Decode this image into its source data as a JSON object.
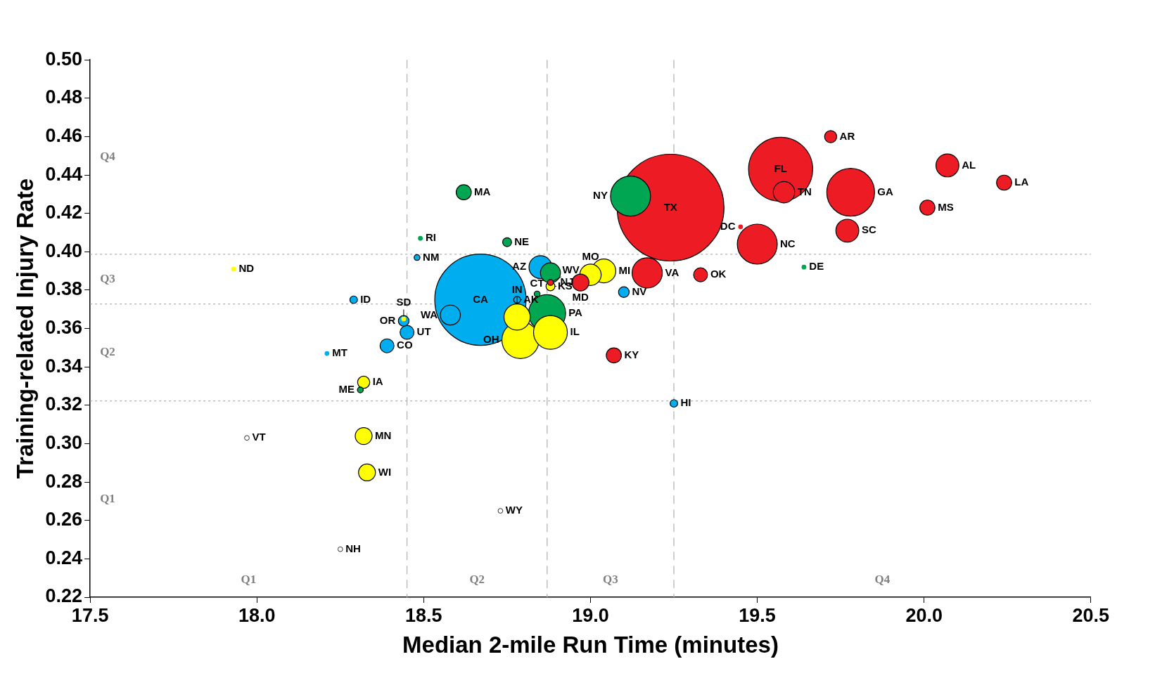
{
  "chart_data": {
    "type": "bubble",
    "xlabel": "Median 2-mile Run Time (minutes)",
    "ylabel": "Training-related Injury Rate",
    "xlim": [
      17.5,
      20.5
    ],
    "xticks": [
      17.5,
      {
        "value": 18,
        "label": "18.0"
      },
      18.5,
      {
        "value": 19,
        "label": "19.0"
      },
      19.5,
      {
        "value": 20,
        "label": "20.0"
      },
      20.5
    ],
    "ylim": [
      0.22,
      0.5
    ],
    "yticks": [
      0.22,
      0.24,
      0.26,
      0.28,
      {
        "value": 0.3,
        "label": "0.30"
      },
      0.32,
      0.34,
      0.36,
      0.38,
      {
        "value": 0.4,
        "label": "0.40"
      },
      0.42,
      0.44,
      0.46,
      0.48,
      {
        "value": 0.5,
        "label": "0.50"
      }
    ],
    "legend": false,
    "series": [
      {
        "x": [
          19.24,
          18.67,
          19.57,
          19.78,
          19.12,
          19.5,
          18.87,
          18.79,
          18.88,
          19.17,
          18.78,
          19.04,
          18.85,
          20.07,
          19.77,
          19.58,
          19.0,
          18.88,
          18.58,
          18.97,
          18.32,
          18.33,
          18.62,
          20.24,
          20.01,
          19.07,
          19.33,
          18.45,
          18.39,
          19.72,
          18.32,
          19.1,
          18.44,
          18.75,
          18.88,
          19.25,
          18.29,
          18.48,
          18.88,
          18.31,
          18.84,
          18.49,
          19.64,
          18.21,
          18.25,
          18.78,
          17.93,
          17.97,
          18.73,
          18.44,
          19.45
        ],
        "values": [
          0.423,
          0.375,
          0.443,
          0.431,
          0.429,
          0.404,
          0.368,
          0.354,
          0.358,
          0.389,
          0.366,
          0.39,
          0.392,
          0.445,
          0.411,
          0.431,
          0.388,
          0.389,
          0.367,
          0.384,
          0.304,
          0.285,
          0.431,
          0.436,
          0.423,
          0.346,
          0.388,
          0.358,
          0.351,
          0.46,
          0.332,
          0.379,
          0.364,
          0.405,
          0.382,
          0.321,
          0.375,
          0.397,
          0.384,
          0.328,
          0.378,
          0.407,
          0.392,
          0.347,
          0.245,
          0.375,
          0.391,
          0.303,
          0.265,
          0.365,
          0.413
        ],
        "sizes": [
          1,
          0.73,
          0.36,
          0.2,
          0.14,
          0.14,
          0.12,
          0.12,
          0.1,
          0.08,
          0.06,
          0.05,
          0.046,
          0.046,
          0.046,
          0.04,
          0.04,
          0.035,
          0.035,
          0.025,
          0.025,
          0.025,
          0.02,
          0.02,
          0.02,
          0.02,
          0.017,
          0.017,
          0.017,
          0.013,
          0.013,
          0.01,
          0.01,
          0.007,
          0.007,
          0.005,
          0.005,
          0.003,
          0.003,
          0.003,
          0.003,
          0.002,
          0.002,
          0.002,
          0.002,
          0.004,
          0.002,
          0.002,
          0.002,
          0.002,
          0.002
        ],
        "colors": [
          "#ed1c24",
          "#00aeef",
          "#ed1c24",
          "#ed1c24",
          "#00a651",
          "#ed1c24",
          "#00a651",
          "#ffff00",
          "#ffff00",
          "#ed1c24",
          "#ffff00",
          "#ffff00",
          "#00aeef",
          "#ed1c24",
          "#ed1c24",
          "#ed1c24",
          "#ffff00",
          "#00a651",
          "#00aeef",
          "#ed1c24",
          "#ffff00",
          "#ffff00",
          "#00a651",
          "#ed1c24",
          "#ed1c24",
          "#ed1c24",
          "#ed1c24",
          "#00aeef",
          "#00aeef",
          "#ed1c24",
          "#ffff00",
          "#00aeef",
          "#00aeef",
          "#00a651",
          "#ffff00",
          "#00aeef",
          "#00aeef",
          "#00aeef",
          "#ed1c24",
          "#00a651",
          "#00a651",
          "#00a651",
          "#00a651",
          "#00aeef",
          "#ffffff",
          "#00aeef",
          "#ffff00",
          "#ffffff",
          "#ffffff",
          "#ffff00",
          "#ed1c24"
        ]
      }
    ],
    "annotations": [
      {
        "text": "TX",
        "x": 19.24,
        "y": 0.423
      },
      {
        "text": "CA",
        "x": 18.67,
        "y": 0.375
      },
      {
        "text": "FL",
        "x": 19.57,
        "y": 0.443
      },
      {
        "text": "GA",
        "x": 19.78,
        "y": 0.431
      },
      {
        "text": "NY",
        "x": 19.12,
        "y": 0.429
      },
      {
        "text": "NC",
        "x": 19.5,
        "y": 0.404
      },
      {
        "text": "PA",
        "x": 18.87,
        "y": 0.368
      },
      {
        "text": "OH",
        "x": 18.79,
        "y": 0.354
      },
      {
        "text": "IL",
        "x": 18.88,
        "y": 0.358
      },
      {
        "text": "VA",
        "x": 19.17,
        "y": 0.389
      },
      {
        "text": "IN",
        "x": 18.78,
        "y": 0.366
      },
      {
        "text": "MI",
        "x": 19.04,
        "y": 0.39
      },
      {
        "text": "AZ",
        "x": 18.85,
        "y": 0.392
      },
      {
        "text": "AL",
        "x": 20.07,
        "y": 0.445
      },
      {
        "text": "SC",
        "x": 19.77,
        "y": 0.411
      },
      {
        "text": "TN",
        "x": 19.58,
        "y": 0.431
      },
      {
        "text": "MO",
        "x": 19.0,
        "y": 0.388
      },
      {
        "text": "NJ",
        "x": 18.88,
        "y": 0.389
      },
      {
        "text": "WA",
        "x": 18.58,
        "y": 0.367
      },
      {
        "text": "MD",
        "x": 18.97,
        "y": 0.384
      },
      {
        "text": "MN",
        "x": 18.32,
        "y": 0.304
      },
      {
        "text": "WI",
        "x": 18.33,
        "y": 0.285
      },
      {
        "text": "MA",
        "x": 18.62,
        "y": 0.431
      },
      {
        "text": "LA",
        "x": 20.24,
        "y": 0.436
      },
      {
        "text": "MS",
        "x": 20.01,
        "y": 0.423
      },
      {
        "text": "KY",
        "x": 19.07,
        "y": 0.346
      },
      {
        "text": "OK",
        "x": 19.33,
        "y": 0.388
      },
      {
        "text": "UT",
        "x": 18.45,
        "y": 0.358
      },
      {
        "text": "CO",
        "x": 18.39,
        "y": 0.351
      },
      {
        "text": "AR",
        "x": 19.72,
        "y": 0.46
      },
      {
        "text": "IA",
        "x": 18.32,
        "y": 0.332
      },
      {
        "text": "NV",
        "x": 19.1,
        "y": 0.379
      },
      {
        "text": "OR",
        "x": 18.44,
        "y": 0.364
      },
      {
        "text": "NE",
        "x": 18.75,
        "y": 0.405
      },
      {
        "text": "KS",
        "x": 18.88,
        "y": 0.382
      },
      {
        "text": "HI",
        "x": 19.25,
        "y": 0.321
      },
      {
        "text": "ID",
        "x": 18.29,
        "y": 0.375
      },
      {
        "text": "NM",
        "x": 18.48,
        "y": 0.397
      },
      {
        "text": "WV",
        "x": 18.88,
        "y": 0.384
      },
      {
        "text": "ME",
        "x": 18.31,
        "y": 0.328
      },
      {
        "text": "CT",
        "x": 18.84,
        "y": 0.378
      },
      {
        "text": "RI",
        "x": 18.49,
        "y": 0.407
      },
      {
        "text": "DE",
        "x": 19.64,
        "y": 0.392
      },
      {
        "text": "MT",
        "x": 18.21,
        "y": 0.347
      },
      {
        "text": "NH",
        "x": 18.25,
        "y": 0.245
      },
      {
        "text": "AK",
        "x": 18.78,
        "y": 0.375
      },
      {
        "text": "ND",
        "x": 17.93,
        "y": 0.391
      },
      {
        "text": "VT",
        "x": 17.97,
        "y": 0.303
      },
      {
        "text": "WY",
        "x": 18.73,
        "y": 0.265
      },
      {
        "text": "SD",
        "x": 18.44,
        "y": 0.365
      },
      {
        "text": "DC",
        "x": 19.45,
        "y": 0.413
      },
      "Q1",
      "Q2",
      "Q3",
      "Q4",
      "Q1",
      "Q2",
      "Q3",
      "Q4"
    ],
    "ref_lines": [
      {
        "axis": "x",
        "value": 18.45,
        "color": "#b0b0b0",
        "line_style": "dashed"
      },
      {
        "axis": "x",
        "value": 18.87,
        "color": "#b0b0b0",
        "line_style": "dashed"
      },
      {
        "axis": "x",
        "value": 19.25,
        "color": "#b0b0b0",
        "line_style": "dashed"
      },
      {
        "axis": "y",
        "value": 0.3223,
        "color": "#b0b0b0",
        "line_style": "dotted"
      },
      {
        "axis": "y",
        "value": 0.3728,
        "color": "#b0b0b0",
        "line_style": "dotted"
      },
      {
        "axis": "y",
        "value": 0.3987,
        "color": "#b0b0b0",
        "line_style": "dotted"
      }
    ]
  }
}
